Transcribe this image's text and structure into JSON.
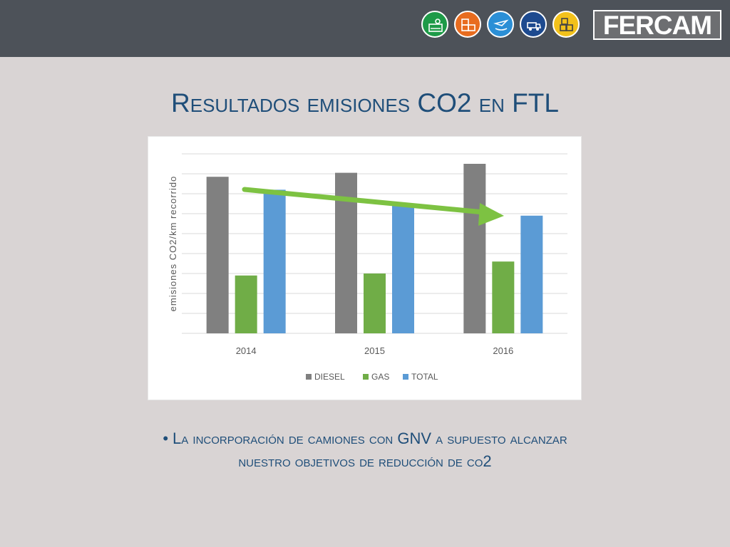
{
  "header": {
    "brand_name": "FERCAM",
    "division_icons": [
      {
        "name": "logistics-icon",
        "color": "#1e9a48"
      },
      {
        "name": "warehouse-icon",
        "color": "#e86c1f"
      },
      {
        "name": "air-sea-icon",
        "color": "#2b8fd6"
      },
      {
        "name": "transport-icon",
        "color": "#1d4a8f"
      },
      {
        "name": "removals-icon",
        "color": "#f2c11b"
      }
    ]
  },
  "slide": {
    "title": "Resultados emisiones CO2 en FTL",
    "bullet_line1": "La incorporación de camiones con GNV a supuesto alcanzar",
    "bullet_line2": "nuestro objetivos de reducción de co2"
  },
  "chart_data": {
    "type": "bar",
    "title": "",
    "xlabel": "",
    "ylabel": "emisiones CO2/km recorrido",
    "categories": [
      "2014",
      "2015",
      "2016"
    ],
    "series": [
      {
        "name": "DIESEL",
        "color": "#808080",
        "values": [
          7.85,
          8.05,
          8.5
        ]
      },
      {
        "name": "GAS",
        "color": "#70ad47",
        "values": [
          2.9,
          3.0,
          3.6
        ]
      },
      {
        "name": "TOTAL",
        "color": "#5b9bd5",
        "values": [
          7.2,
          6.5,
          5.9
        ]
      }
    ],
    "ylim": [
      0,
      9
    ],
    "grid": true,
    "y_tick_labels_shown": false,
    "legend_position": "bottom",
    "annotation": "green trend arrow pointing downward from 2014 to 2016",
    "annotation_color": "#7dc242"
  }
}
